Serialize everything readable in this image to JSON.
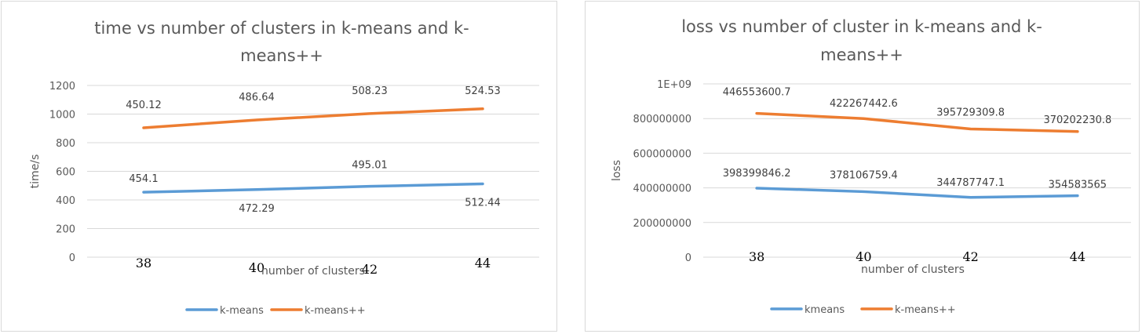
{
  "chart_data": [
    {
      "type": "line",
      "title_lines": [
        "time vs number of clusters in k-means and k-",
        "means++"
      ],
      "xlabel": "number of clusters",
      "ylabel": "time/s",
      "categories": [
        "38",
        "40",
        "42",
        "44"
      ],
      "yticks": [
        "0",
        "200",
        "400",
        "600",
        "800",
        "1000",
        "1200"
      ],
      "ylim": [
        0,
        1200
      ],
      "grid": true,
      "legend_position": "bottom",
      "series": [
        {
          "name": "k-means",
          "color": "#5b9bd5",
          "values": [
            454.1,
            472.29,
            495.01,
            512.44
          ],
          "labels": [
            "454.1",
            "472.29",
            "495.01",
            "512.44"
          ]
        },
        {
          "name": "k-means++",
          "color": "#ed7d31",
          "values": [
            904.22,
            958.93,
            1003.24,
            1036.97
          ],
          "labels": [
            "450.12",
            "486.64",
            "508.23",
            "524.53"
          ]
        }
      ]
    },
    {
      "type": "line",
      "title_lines": [
        "loss vs number of cluster in k-means and k-",
        "means++"
      ],
      "xlabel": "number of clusters",
      "ylabel": "loss",
      "categories": [
        "38",
        "40",
        "42",
        "44"
      ],
      "yticks": [
        "0",
        "200000000",
        "400000000",
        "600000000",
        "800000000",
        "1E+09"
      ],
      "ylim": [
        0,
        1000000000
      ],
      "grid": true,
      "legend_position": "bottom",
      "series": [
        {
          "name": "kmeans",
          "color": "#5b9bd5",
          "values": [
            398399846.2,
            378106759.4,
            344787747.1,
            354583565
          ],
          "labels": [
            "398399846.2",
            "378106759.4",
            "344787747.1",
            "354583565"
          ]
        },
        {
          "name": "k-means++",
          "color": "#ed7d31",
          "values": [
            830000000,
            800000000,
            740000000,
            725000000
          ],
          "labels": [
            "446553600.7",
            "422267442.6",
            "395729309.8",
            "370202230.8"
          ]
        }
      ]
    }
  ]
}
